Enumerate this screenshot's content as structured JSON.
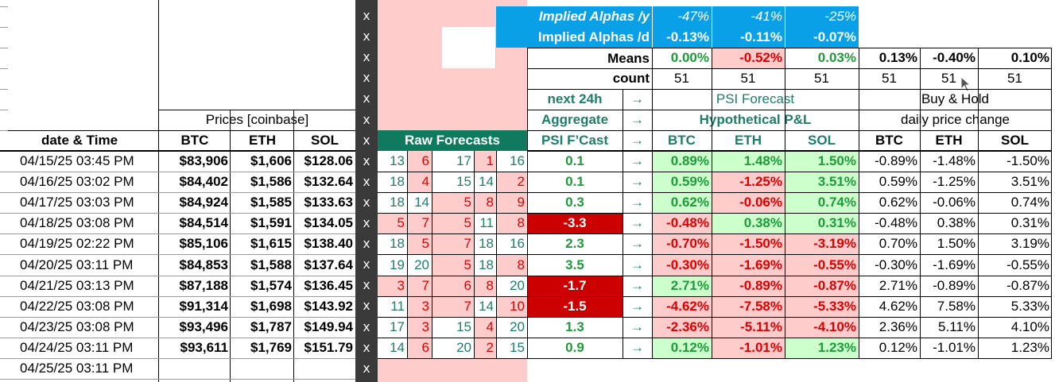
{
  "alphas": {
    "yearly_label": "Implied Alphas /y",
    "daily_label": "Implied Alphas /d",
    "yearly": [
      "-47%",
      "-41%",
      "-25%"
    ],
    "daily": [
      "-0.13%",
      "-0.11%",
      "-0.07%"
    ]
  },
  "means": {
    "label": "Means",
    "values": [
      "0.00%",
      "-0.52%",
      "0.03%",
      "0.13%",
      "-0.40%",
      "0.10%"
    ]
  },
  "count": {
    "label": "count",
    "values": [
      "51",
      "51",
      "51",
      "51",
      "51",
      "51"
    ]
  },
  "headers": {
    "next24h": "next 24h",
    "aggregate": "Aggregate",
    "psi_fcast": "PSI F’Cast",
    "arrow": "→",
    "psi_forecast": "PSI Forecast",
    "hypothetical": "Hypothetical P&L",
    "buy_hold": "Buy & Hold",
    "daily_change": "daily price change",
    "prices": "Prices [coinbase]",
    "date_time": "date & Time",
    "raw_forecasts": "Raw Forecasts",
    "btc": "BTC",
    "eth": "ETH",
    "sol": "SOL",
    "x": "x"
  },
  "rows": [
    {
      "date": "04/15/25 03:45 PM",
      "btc": "$83,906",
      "eth": "$1,606",
      "sol": "$128.06",
      "raw": [
        "13",
        "6",
        "17",
        "1",
        "16"
      ],
      "psi": "0.1",
      "pl": [
        "0.89%",
        "1.48%",
        "1.50%"
      ],
      "bh": [
        "-0.89%",
        "-1.48%",
        "-1.50%"
      ]
    },
    {
      "date": "04/16/25 03:02 PM",
      "btc": "$84,402",
      "eth": "$1,586",
      "sol": "$132.64",
      "raw": [
        "18",
        "4",
        "15",
        "14",
        "2"
      ],
      "psi": "0.1",
      "pl": [
        "0.59%",
        "-1.25%",
        "3.51%"
      ],
      "bh": [
        "0.59%",
        "-1.25%",
        "3.51%"
      ]
    },
    {
      "date": "04/17/25 03:03 PM",
      "btc": "$84,924",
      "eth": "$1,585",
      "sol": "$133.63",
      "raw": [
        "18",
        "14",
        "5",
        "8",
        "9"
      ],
      "psi": "0.3",
      "pl": [
        "0.62%",
        "-0.06%",
        "0.74%"
      ],
      "bh": [
        "0.62%",
        "-0.06%",
        "0.74%"
      ]
    },
    {
      "date": "04/18/25 03:08 PM",
      "btc": "$84,514",
      "eth": "$1,591",
      "sol": "$134.05",
      "raw": [
        "5",
        "7",
        "5",
        "11",
        "8"
      ],
      "psi": "-3.3",
      "pl": [
        "-0.48%",
        "0.38%",
        "0.31%"
      ],
      "bh": [
        "-0.48%",
        "0.38%",
        "0.31%"
      ]
    },
    {
      "date": "04/19/25 02:22 PM",
      "btc": "$85,106",
      "eth": "$1,615",
      "sol": "$138.40",
      "raw": [
        "18",
        "5",
        "7",
        "18",
        "16"
      ],
      "psi": "2.3",
      "pl": [
        "-0.70%",
        "-1.50%",
        "-3.19%"
      ],
      "bh": [
        "0.70%",
        "1.50%",
        "3.19%"
      ]
    },
    {
      "date": "04/20/25 03:11 PM",
      "btc": "$84,853",
      "eth": "$1,588",
      "sol": "$137.64",
      "raw": [
        "19",
        "20",
        "5",
        "18",
        "8"
      ],
      "psi": "3.5",
      "pl": [
        "-0.30%",
        "-1.69%",
        "-0.55%"
      ],
      "bh": [
        "-0.30%",
        "-1.69%",
        "-0.55%"
      ]
    },
    {
      "date": "04/21/25 03:13 PM",
      "btc": "$87,188",
      "eth": "$1,574",
      "sol": "$136.45",
      "raw": [
        "3",
        "7",
        "6",
        "8",
        "20"
      ],
      "psi": "-1.7",
      "pl": [
        "2.71%",
        "-0.89%",
        "-0.87%"
      ],
      "bh": [
        "2.71%",
        "-0.89%",
        "-0.87%"
      ]
    },
    {
      "date": "04/22/25 03:08 PM",
      "btc": "$91,314",
      "eth": "$1,698",
      "sol": "$143.92",
      "raw": [
        "11",
        "3",
        "7",
        "14",
        "10"
      ],
      "psi": "-1.5",
      "pl": [
        "-4.62%",
        "-7.58%",
        "-5.33%"
      ],
      "bh": [
        "4.62%",
        "7.58%",
        "5.33%"
      ]
    },
    {
      "date": "04/23/25 03:08 PM",
      "btc": "$93,496",
      "eth": "$1,787",
      "sol": "$149.94",
      "raw": [
        "17",
        "3",
        "15",
        "4",
        "20"
      ],
      "psi": "1.3",
      "pl": [
        "-2.36%",
        "-5.11%",
        "-4.10%"
      ],
      "bh": [
        "2.36%",
        "5.11%",
        "4.10%"
      ]
    },
    {
      "date": "04/24/25 03:11 PM",
      "btc": "$93,611",
      "eth": "$1,769",
      "sol": "$151.79",
      "raw": [
        "14",
        "6",
        "20",
        "2",
        "15"
      ],
      "psi": "0.9",
      "pl": [
        "0.12%",
        "-1.01%",
        "1.23%"
      ],
      "bh": [
        "0.12%",
        "-1.01%",
        "1.23%"
      ]
    }
  ],
  "last_date": "04/25/25 03:11 PM",
  "colors": {
    "blue_header": "#0aa0e8",
    "teal_header": "#0f7a5e",
    "red_fill": "#cc0000",
    "green_fill": "#ccffcc",
    "pink_fill": "#ffcccc"
  }
}
